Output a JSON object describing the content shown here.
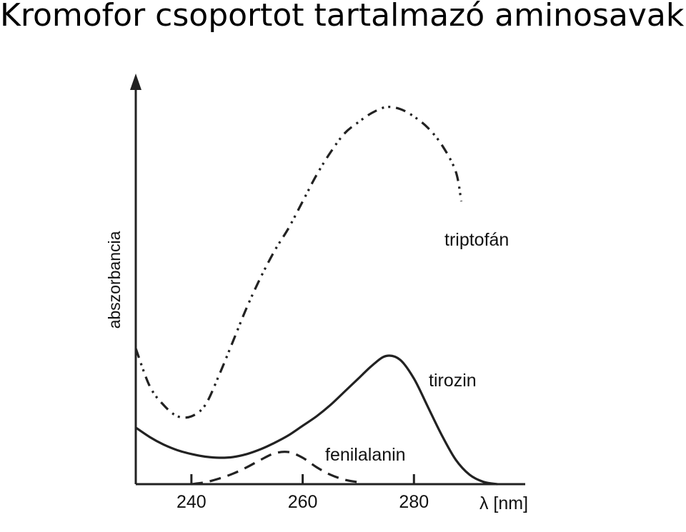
{
  "slide": {
    "title": "Kromofor csoportot tartalmazó aminosavak"
  },
  "chart_data": {
    "type": "line",
    "title": "",
    "xlabel": "λ [nm]",
    "ylabel": "abszorbancia",
    "xlim": [
      230,
      300
    ],
    "ylim": [
      0,
      1
    ],
    "xticks": [
      240,
      260,
      280
    ],
    "tick_labels": [
      "240",
      "260",
      "280"
    ],
    "grid": false,
    "series": [
      {
        "name": "triptofán",
        "style": "dash-dot-dot",
        "color": "#222222",
        "x": [
          230,
          232.5,
          235,
          237.5,
          240,
          242.5,
          245,
          247.5,
          250,
          252.5,
          255,
          257.5,
          260,
          262.5,
          265,
          267.5,
          270,
          272.5,
          275,
          277.5,
          280,
          282.5,
          285,
          287.5,
          288.5
        ],
        "y": [
          0.36,
          0.26,
          0.21,
          0.18,
          0.18,
          0.21,
          0.29,
          0.38,
          0.47,
          0.55,
          0.62,
          0.68,
          0.75,
          0.82,
          0.88,
          0.93,
          0.96,
          0.985,
          1.0,
          0.995,
          0.975,
          0.945,
          0.9,
          0.83,
          0.75
        ]
      },
      {
        "name": "tirozin",
        "style": "solid",
        "color": "#222222",
        "x": [
          230,
          232.5,
          235,
          237.5,
          240,
          242.5,
          245,
          247.5,
          250,
          252.5,
          255,
          257.5,
          260,
          262.5,
          265,
          267.5,
          270,
          272.5,
          275,
          277.5,
          280,
          282.5,
          285,
          287.5,
          290,
          292.5,
          295
        ],
        "y": [
          0.15,
          0.125,
          0.105,
          0.09,
          0.08,
          0.073,
          0.07,
          0.072,
          0.08,
          0.093,
          0.11,
          0.13,
          0.155,
          0.18,
          0.21,
          0.245,
          0.28,
          0.315,
          0.34,
          0.33,
          0.28,
          0.205,
          0.13,
          0.065,
          0.025,
          0.006,
          0.0
        ]
      },
      {
        "name": "fenilalanin",
        "style": "dashed",
        "color": "#222222",
        "x": [
          240,
          242.5,
          245,
          247.5,
          250,
          252.5,
          255,
          257.5,
          260,
          262.5,
          265,
          267.5,
          270
        ],
        "y": [
          0.0,
          0.005,
          0.015,
          0.028,
          0.045,
          0.065,
          0.082,
          0.085,
          0.07,
          0.045,
          0.025,
          0.012,
          0.005
        ]
      }
    ]
  }
}
